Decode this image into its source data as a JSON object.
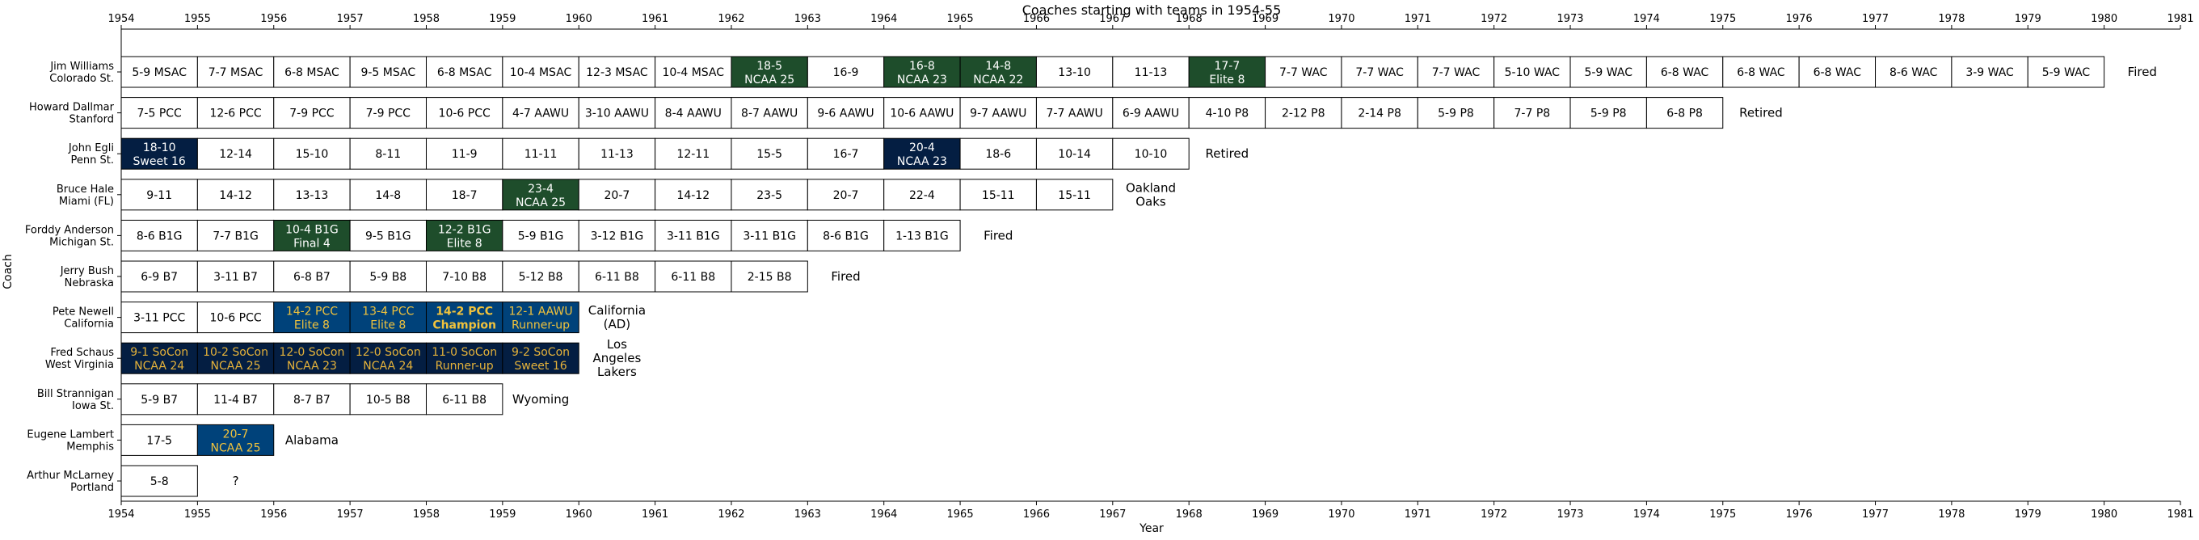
{
  "chart_data": {
    "type": "timeline",
    "title": "Coaches starting with teams in 1954-55",
    "xlabel": "Year",
    "ylabel": "Coach",
    "xlim": [
      1954,
      1981
    ],
    "xticks": [
      "1954",
      "1955",
      "1956",
      "1957",
      "1958",
      "1959",
      "1960",
      "1961",
      "1962",
      "1963",
      "1964",
      "1965",
      "1966",
      "1967",
      "1968",
      "1969",
      "1970",
      "1971",
      "1972",
      "1973",
      "1974",
      "1975",
      "1976",
      "1977",
      "1978",
      "1979",
      "1980",
      "1981"
    ],
    "colors": {
      "white": "#ffffff",
      "green": "#1e4d2b",
      "navy": "#041e42",
      "blue": "#00427a",
      "gold": "#e5b23a",
      "gold_text": "#f0c23c"
    },
    "rows": [
      {
        "coach": "Jim Williams",
        "team": "Colorado St.",
        "seasons": [
          {
            "year": 1954,
            "line1": "5-9 MSAC",
            "line2": "",
            "style": "white"
          },
          {
            "year": 1955,
            "line1": "7-7 MSAC",
            "line2": "",
            "style": "white"
          },
          {
            "year": 1956,
            "line1": "6-8 MSAC",
            "line2": "",
            "style": "white"
          },
          {
            "year": 1957,
            "line1": "9-5 MSAC",
            "line2": "",
            "style": "white"
          },
          {
            "year": 1958,
            "line1": "6-8 MSAC",
            "line2": "",
            "style": "white"
          },
          {
            "year": 1959,
            "line1": "10-4 MSAC",
            "line2": "",
            "style": "white"
          },
          {
            "year": 1960,
            "line1": "12-3 MSAC",
            "line2": "",
            "style": "white"
          },
          {
            "year": 1961,
            "line1": "10-4 MSAC",
            "line2": "",
            "style": "white"
          },
          {
            "year": 1962,
            "line1": "18-5",
            "line2": "NCAA 25",
            "style": "green"
          },
          {
            "year": 1963,
            "line1": "16-9",
            "line2": "",
            "style": "white"
          },
          {
            "year": 1964,
            "line1": "16-8",
            "line2": "NCAA 23",
            "style": "green"
          },
          {
            "year": 1965,
            "line1": "14-8",
            "line2": "NCAA 22",
            "style": "green"
          },
          {
            "year": 1966,
            "line1": "13-10",
            "line2": "",
            "style": "white"
          },
          {
            "year": 1967,
            "line1": "11-13",
            "line2": "",
            "style": "white"
          },
          {
            "year": 1968,
            "line1": "17-7",
            "line2": "Elite 8",
            "style": "green"
          },
          {
            "year": 1969,
            "line1": "7-7 WAC",
            "line2": "",
            "style": "white"
          },
          {
            "year": 1970,
            "line1": "7-7 WAC",
            "line2": "",
            "style": "white"
          },
          {
            "year": 1971,
            "line1": "7-7 WAC",
            "line2": "",
            "style": "white"
          },
          {
            "year": 1972,
            "line1": "5-10 WAC",
            "line2": "",
            "style": "white"
          },
          {
            "year": 1973,
            "line1": "5-9 WAC",
            "line2": "",
            "style": "white"
          },
          {
            "year": 1974,
            "line1": "6-8 WAC",
            "line2": "",
            "style": "white"
          },
          {
            "year": 1975,
            "line1": "6-8 WAC",
            "line2": "",
            "style": "white"
          },
          {
            "year": 1976,
            "line1": "6-8 WAC",
            "line2": "",
            "style": "white"
          },
          {
            "year": 1977,
            "line1": "8-6 WAC",
            "line2": "",
            "style": "white"
          },
          {
            "year": 1978,
            "line1": "3-9 WAC",
            "line2": "",
            "style": "white"
          },
          {
            "year": 1979,
            "line1": "5-9 WAC",
            "line2": "",
            "style": "white"
          }
        ],
        "outcome": [
          "Fired"
        ]
      },
      {
        "coach": "Howard Dallmar",
        "team": "Stanford",
        "seasons": [
          {
            "year": 1954,
            "line1": "7-5 PCC",
            "line2": "",
            "style": "white"
          },
          {
            "year": 1955,
            "line1": "12-6 PCC",
            "line2": "",
            "style": "white"
          },
          {
            "year": 1956,
            "line1": "7-9 PCC",
            "line2": "",
            "style": "white"
          },
          {
            "year": 1957,
            "line1": "7-9 PCC",
            "line2": "",
            "style": "white"
          },
          {
            "year": 1958,
            "line1": "10-6 PCC",
            "line2": "",
            "style": "white"
          },
          {
            "year": 1959,
            "line1": "4-7 AAWU",
            "line2": "",
            "style": "white"
          },
          {
            "year": 1960,
            "line1": "3-10 AAWU",
            "line2": "",
            "style": "white"
          },
          {
            "year": 1961,
            "line1": "8-4 AAWU",
            "line2": "",
            "style": "white"
          },
          {
            "year": 1962,
            "line1": "8-7 AAWU",
            "line2": "",
            "style": "white"
          },
          {
            "year": 1963,
            "line1": "9-6 AAWU",
            "line2": "",
            "style": "white"
          },
          {
            "year": 1964,
            "line1": "10-6 AAWU",
            "line2": "",
            "style": "white"
          },
          {
            "year": 1965,
            "line1": "9-7 AAWU",
            "line2": "",
            "style": "white"
          },
          {
            "year": 1966,
            "line1": "7-7 AAWU",
            "line2": "",
            "style": "white"
          },
          {
            "year": 1967,
            "line1": "6-9 AAWU",
            "line2": "",
            "style": "white"
          },
          {
            "year": 1968,
            "line1": "4-10 P8",
            "line2": "",
            "style": "white"
          },
          {
            "year": 1969,
            "line1": "2-12 P8",
            "line2": "",
            "style": "white"
          },
          {
            "year": 1970,
            "line1": "2-14 P8",
            "line2": "",
            "style": "white"
          },
          {
            "year": 1971,
            "line1": "5-9 P8",
            "line2": "",
            "style": "white"
          },
          {
            "year": 1972,
            "line1": "7-7 P8",
            "line2": "",
            "style": "white"
          },
          {
            "year": 1973,
            "line1": "5-9 P8",
            "line2": "",
            "style": "white"
          },
          {
            "year": 1974,
            "line1": "6-8 P8",
            "line2": "",
            "style": "white"
          }
        ],
        "outcome": [
          "Retired"
        ]
      },
      {
        "coach": "John Egli",
        "team": "Penn St.",
        "seasons": [
          {
            "year": 1954,
            "line1": "18-10",
            "line2": "Sweet 16",
            "style": "navy"
          },
          {
            "year": 1955,
            "line1": "12-14",
            "line2": "",
            "style": "white"
          },
          {
            "year": 1956,
            "line1": "15-10",
            "line2": "",
            "style": "white"
          },
          {
            "year": 1957,
            "line1": "8-11",
            "line2": "",
            "style": "white"
          },
          {
            "year": 1958,
            "line1": "11-9",
            "line2": "",
            "style": "white"
          },
          {
            "year": 1959,
            "line1": "11-11",
            "line2": "",
            "style": "white"
          },
          {
            "year": 1960,
            "line1": "11-13",
            "line2": "",
            "style": "white"
          },
          {
            "year": 1961,
            "line1": "12-11",
            "line2": "",
            "style": "white"
          },
          {
            "year": 1962,
            "line1": "15-5",
            "line2": "",
            "style": "white"
          },
          {
            "year": 1963,
            "line1": "16-7",
            "line2": "",
            "style": "white"
          },
          {
            "year": 1964,
            "line1": "20-4",
            "line2": "NCAA 23",
            "style": "navy"
          },
          {
            "year": 1965,
            "line1": "18-6",
            "line2": "",
            "style": "white"
          },
          {
            "year": 1966,
            "line1": "10-14",
            "line2": "",
            "style": "white"
          },
          {
            "year": 1967,
            "line1": "10-10",
            "line2": "",
            "style": "white"
          }
        ],
        "outcome": [
          "Retired"
        ]
      },
      {
        "coach": "Bruce Hale",
        "team": "Miami (FL)",
        "seasons": [
          {
            "year": 1954,
            "line1": "9-11",
            "line2": "",
            "style": "white"
          },
          {
            "year": 1955,
            "line1": "14-12",
            "line2": "",
            "style": "white"
          },
          {
            "year": 1956,
            "line1": "13-13",
            "line2": "",
            "style": "white"
          },
          {
            "year": 1957,
            "line1": "14-8",
            "line2": "",
            "style": "white"
          },
          {
            "year": 1958,
            "line1": "18-7",
            "line2": "",
            "style": "white"
          },
          {
            "year": 1959,
            "line1": "23-4",
            "line2": "NCAA 25",
            "style": "green"
          },
          {
            "year": 1960,
            "line1": "20-7",
            "line2": "",
            "style": "white"
          },
          {
            "year": 1961,
            "line1": "14-12",
            "line2": "",
            "style": "white"
          },
          {
            "year": 1962,
            "line1": "23-5",
            "line2": "",
            "style": "white"
          },
          {
            "year": 1963,
            "line1": "20-7",
            "line2": "",
            "style": "white"
          },
          {
            "year": 1964,
            "line1": "22-4",
            "line2": "",
            "style": "white"
          },
          {
            "year": 1965,
            "line1": "15-11",
            "line2": "",
            "style": "white"
          },
          {
            "year": 1966,
            "line1": "15-11",
            "line2": "",
            "style": "white"
          }
        ],
        "outcome": [
          "Oakland",
          "Oaks"
        ]
      },
      {
        "coach": "Forddy Anderson",
        "team": "Michigan St.",
        "seasons": [
          {
            "year": 1954,
            "line1": "8-6 B1G",
            "line2": "",
            "style": "white"
          },
          {
            "year": 1955,
            "line1": "7-7 B1G",
            "line2": "",
            "style": "white"
          },
          {
            "year": 1956,
            "line1": "10-4 B1G",
            "line2": "Final 4",
            "style": "green"
          },
          {
            "year": 1957,
            "line1": "9-5 B1G",
            "line2": "",
            "style": "white"
          },
          {
            "year": 1958,
            "line1": "12-2 B1G",
            "line2": "Elite 8",
            "style": "green"
          },
          {
            "year": 1959,
            "line1": "5-9 B1G",
            "line2": "",
            "style": "white"
          },
          {
            "year": 1960,
            "line1": "3-12 B1G",
            "line2": "",
            "style": "white"
          },
          {
            "year": 1961,
            "line1": "3-11 B1G",
            "line2": "",
            "style": "white"
          },
          {
            "year": 1962,
            "line1": "3-11 B1G",
            "line2": "",
            "style": "white"
          },
          {
            "year": 1963,
            "line1": "8-6 B1G",
            "line2": "",
            "style": "white"
          },
          {
            "year": 1964,
            "line1": "1-13 B1G",
            "line2": "",
            "style": "white"
          }
        ],
        "outcome": [
          "Fired"
        ]
      },
      {
        "coach": "Jerry Bush",
        "team": "Nebraska",
        "seasons": [
          {
            "year": 1954,
            "line1": "6-9 B7",
            "line2": "",
            "style": "white"
          },
          {
            "year": 1955,
            "line1": "3-11 B7",
            "line2": "",
            "style": "white"
          },
          {
            "year": 1956,
            "line1": "6-8 B7",
            "line2": "",
            "style": "white"
          },
          {
            "year": 1957,
            "line1": "5-9 B8",
            "line2": "",
            "style": "white"
          },
          {
            "year": 1958,
            "line1": "7-10 B8",
            "line2": "",
            "style": "white"
          },
          {
            "year": 1959,
            "line1": "5-12 B8",
            "line2": "",
            "style": "white"
          },
          {
            "year": 1960,
            "line1": "6-11 B8",
            "line2": "",
            "style": "white"
          },
          {
            "year": 1961,
            "line1": "6-11 B8",
            "line2": "",
            "style": "white"
          },
          {
            "year": 1962,
            "line1": "2-15 B8",
            "line2": "",
            "style": "white"
          }
        ],
        "outcome": [
          "Fired"
        ]
      },
      {
        "coach": "Pete Newell",
        "team": "California",
        "seasons": [
          {
            "year": 1954,
            "line1": "3-11 PCC",
            "line2": "",
            "style": "white"
          },
          {
            "year": 1955,
            "line1": "10-6 PCC",
            "line2": "",
            "style": "white"
          },
          {
            "year": 1956,
            "line1": "14-2 PCC",
            "line2": "Elite 8",
            "style": "blue"
          },
          {
            "year": 1957,
            "line1": "13-4 PCC",
            "line2": "Elite 8",
            "style": "blue"
          },
          {
            "year": 1958,
            "line1": "14-2 PCC",
            "line2": "Champion",
            "style": "blue",
            "bold": true
          },
          {
            "year": 1959,
            "line1": "12-1 AAWU",
            "line2": "Runner-up",
            "style": "blue"
          }
        ],
        "outcome": [
          "California",
          "(AD)"
        ]
      },
      {
        "coach": "Fred Schaus",
        "team": "West Virginia",
        "seasons": [
          {
            "year": 1954,
            "line1": "9-1 SoCon",
            "line2": "NCAA 24",
            "style": "navygold"
          },
          {
            "year": 1955,
            "line1": "10-2 SoCon",
            "line2": "NCAA 25",
            "style": "navygold"
          },
          {
            "year": 1956,
            "line1": "12-0 SoCon",
            "line2": "NCAA 23",
            "style": "navygold"
          },
          {
            "year": 1957,
            "line1": "12-0 SoCon",
            "line2": "NCAA 24",
            "style": "navygold"
          },
          {
            "year": 1958,
            "line1": "11-0 SoCon",
            "line2": "Runner-up",
            "style": "navygold"
          },
          {
            "year": 1959,
            "line1": "9-2 SoCon",
            "line2": "Sweet 16",
            "style": "navygold"
          }
        ],
        "outcome": [
          "Los",
          "Angeles",
          "Lakers"
        ]
      },
      {
        "coach": "Bill Strannigan",
        "team": "Iowa St.",
        "seasons": [
          {
            "year": 1954,
            "line1": "5-9 B7",
            "line2": "",
            "style": "white"
          },
          {
            "year": 1955,
            "line1": "11-4 B7",
            "line2": "",
            "style": "white"
          },
          {
            "year": 1956,
            "line1": "8-7 B7",
            "line2": "",
            "style": "white"
          },
          {
            "year": 1957,
            "line1": "10-5 B8",
            "line2": "",
            "style": "white"
          },
          {
            "year": 1958,
            "line1": "6-11 B8",
            "line2": "",
            "style": "white"
          }
        ],
        "outcome": [
          "Wyoming"
        ]
      },
      {
        "coach": "Eugene Lambert",
        "team": "Memphis",
        "seasons": [
          {
            "year": 1954,
            "line1": "17-5",
            "line2": "",
            "style": "white"
          },
          {
            "year": 1955,
            "line1": "20-7",
            "line2": "NCAA 25",
            "style": "blue"
          }
        ],
        "outcome": [
          "Alabama"
        ]
      },
      {
        "coach": "Arthur McLarney",
        "team": "Portland",
        "seasons": [
          {
            "year": 1954,
            "line1": "5-8",
            "line2": "",
            "style": "white"
          }
        ],
        "outcome": [
          "?"
        ]
      }
    ]
  }
}
